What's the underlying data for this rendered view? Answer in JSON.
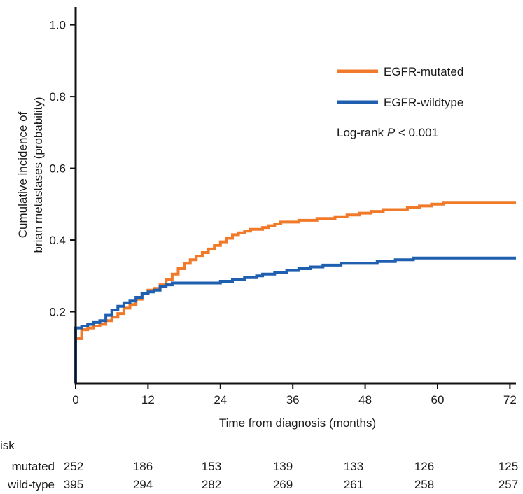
{
  "chart_data": {
    "type": "line",
    "step": true,
    "ylabel_lines": [
      "Cumulative incidence of",
      "brian metastases (probability)"
    ],
    "xlabel": "Time from diagnosis (months)",
    "xlim": [
      0,
      73
    ],
    "ylim": [
      0,
      1.05
    ],
    "x_ticks": [
      0,
      12,
      24,
      36,
      48,
      60,
      72
    ],
    "y_ticks": [
      0.2,
      0.4,
      0.6,
      0.8,
      1.0
    ],
    "y_tick_labels": [
      "0.2",
      "0.4",
      "0.6",
      "0.8",
      "1.0"
    ],
    "legend_position": "top-right",
    "annotation": {
      "prefix": "Log-rank ",
      "italic": "P",
      "suffix": " < 0.001"
    },
    "series": [
      {
        "name": "EGFR-mutated",
        "color": "#f07a2a",
        "points": [
          [
            0,
            0.0
          ],
          [
            0,
            0.125
          ],
          [
            1,
            0.15
          ],
          [
            2,
            0.155
          ],
          [
            3,
            0.16
          ],
          [
            4,
            0.165
          ],
          [
            5,
            0.175
          ],
          [
            6,
            0.185
          ],
          [
            7,
            0.195
          ],
          [
            8,
            0.21
          ],
          [
            9,
            0.22
          ],
          [
            10,
            0.235
          ],
          [
            11,
            0.25
          ],
          [
            12,
            0.26
          ],
          [
            13,
            0.265
          ],
          [
            14,
            0.275
          ],
          [
            15,
            0.29
          ],
          [
            16,
            0.305
          ],
          [
            17,
            0.32
          ],
          [
            18,
            0.335
          ],
          [
            19,
            0.345
          ],
          [
            20,
            0.355
          ],
          [
            21,
            0.365
          ],
          [
            22,
            0.375
          ],
          [
            23,
            0.385
          ],
          [
            24,
            0.395
          ],
          [
            25,
            0.405
          ],
          [
            26,
            0.415
          ],
          [
            27,
            0.42
          ],
          [
            28,
            0.425
          ],
          [
            29,
            0.43
          ],
          [
            31,
            0.435
          ],
          [
            32,
            0.44
          ],
          [
            33,
            0.445
          ],
          [
            34,
            0.45
          ],
          [
            37,
            0.455
          ],
          [
            40,
            0.46
          ],
          [
            43,
            0.465
          ],
          [
            45,
            0.47
          ],
          [
            47,
            0.475
          ],
          [
            49,
            0.48
          ],
          [
            51,
            0.485
          ],
          [
            55,
            0.49
          ],
          [
            57,
            0.495
          ],
          [
            59,
            0.5
          ],
          [
            61,
            0.505
          ],
          [
            73,
            0.505
          ]
        ]
      },
      {
        "name": "EGFR-wildtype",
        "color": "#1f5fb0",
        "points": [
          [
            0,
            0.0
          ],
          [
            0,
            0.155
          ],
          [
            1,
            0.16
          ],
          [
            2,
            0.165
          ],
          [
            3,
            0.17
          ],
          [
            4,
            0.175
          ],
          [
            5,
            0.19
          ],
          [
            6,
            0.205
          ],
          [
            7,
            0.215
          ],
          [
            8,
            0.225
          ],
          [
            9,
            0.23
          ],
          [
            10,
            0.24
          ],
          [
            11,
            0.25
          ],
          [
            12,
            0.255
          ],
          [
            13,
            0.26
          ],
          [
            14,
            0.27
          ],
          [
            15,
            0.275
          ],
          [
            16,
            0.28
          ],
          [
            22,
            0.28
          ],
          [
            24,
            0.285
          ],
          [
            26,
            0.29
          ],
          [
            28,
            0.295
          ],
          [
            30,
            0.3
          ],
          [
            31,
            0.305
          ],
          [
            33,
            0.31
          ],
          [
            35,
            0.315
          ],
          [
            37,
            0.32
          ],
          [
            39,
            0.325
          ],
          [
            41,
            0.33
          ],
          [
            44,
            0.335
          ],
          [
            50,
            0.34
          ],
          [
            53,
            0.345
          ],
          [
            56,
            0.35
          ],
          [
            73,
            0.35
          ]
        ]
      }
    ],
    "risk_table": {
      "title": "isk",
      "rows": [
        {
          "label": "mutated",
          "values": [
            "252",
            "186",
            "153",
            "139",
            "133",
            "126",
            "125"
          ]
        },
        {
          "label": "wild-type",
          "values": [
            "395",
            "294",
            "282",
            "269",
            "261",
            "258",
            "257"
          ]
        }
      ]
    }
  }
}
